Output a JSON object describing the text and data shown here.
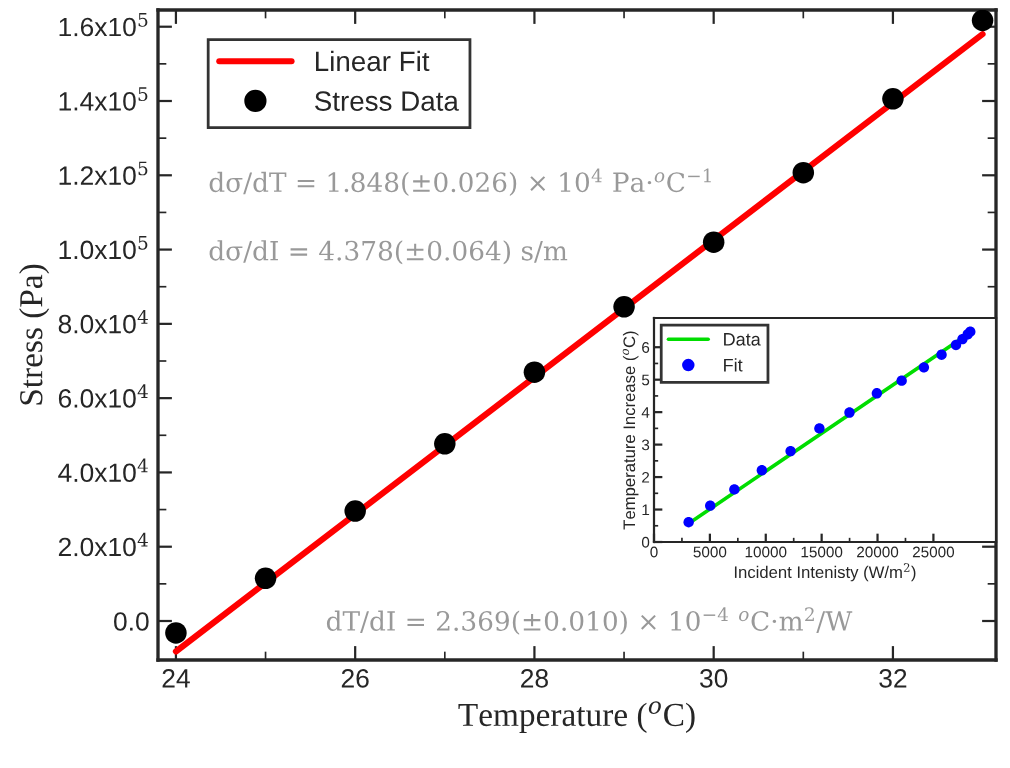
{
  "chart_data": [
    {
      "type": "scatter",
      "xlabel": "Temperature ($^{o}$C)",
      "ylabel": "Stress (Pa)",
      "series": [
        {
          "name": "Linear Fit",
          "type": "line",
          "color": "#ff0000",
          "marker": "none",
          "x": [
            24,
            33
          ],
          "values": [
            -8200,
            158000
          ]
        },
        {
          "name": "Stress Data",
          "color": "#000000",
          "marker": "circle",
          "x": [
            24,
            25,
            26,
            27,
            28,
            29,
            30,
            31,
            32,
            33
          ],
          "values": [
            -3200,
            11500,
            29600,
            47700,
            67000,
            84600,
            102000,
            120700,
            140600,
            161700
          ]
        }
      ],
      "xlim": [
        23.8,
        33.15
      ],
      "xticks": [
        24,
        26,
        28,
        30,
        32
      ],
      "ylim": [
        -10500,
        164500
      ],
      "yticks": [
        {
          "value": 0,
          "label": "0.0"
        },
        {
          "value": 20000,
          "label": "2.0x10$^{4}$"
        },
        {
          "value": 40000,
          "label": "4.0x10$^{4}$"
        },
        {
          "value": 60000,
          "label": "6.0x10$^{4}$"
        },
        {
          "value": 80000,
          "label": "8.0x10$^{4}$"
        },
        {
          "value": 100000,
          "label": "1.0x10$^{5}$"
        },
        {
          "value": 120000,
          "label": "1.2x10$^{5}$"
        },
        {
          "value": 140000,
          "label": "1.4x10$^{5}$"
        },
        {
          "value": 160000,
          "label": "1.6x10$^{5}$"
        }
      ],
      "annotations": [
        "dσ/dT = 1.848(±0.026) × 10$^{4}$ Pa·$^{o}$C$^{−1}$",
        "dσ/dI = 4.378(±0.064) s/m",
        "dT/dI = 2.369(±0.010) × 10$^{−4}$ $^{o}$C·m$^{2}$/W"
      ],
      "grid": false,
      "legend": "top left"
    },
    {
      "type": "scatter",
      "xlabel": "Incident Intenisty (W/m$^{2}$)",
      "ylabel": "Temperature Increase ($^{o}$C)",
      "series": [
        {
          "name": "Data",
          "type": "line",
          "color": "#00dd00",
          "marker": "none",
          "x": [
            3100,
            28300
          ],
          "values": [
            0.57,
            6.45
          ]
        },
        {
          "name": "Fit",
          "color": "#0000ff",
          "marker": "circle",
          "x": [
            3100,
            5030,
            7190,
            9650,
            12220,
            14800,
            17490,
            19940,
            22160,
            24150,
            25730,
            27020,
            27600,
            28070,
            28300
          ],
          "values": [
            0.61,
            1.12,
            1.62,
            2.21,
            2.8,
            3.5,
            3.99,
            4.58,
            4.97,
            5.38,
            5.77,
            6.07,
            6.25,
            6.4,
            6.48
          ]
        }
      ],
      "xlim": [
        0,
        30600
      ],
      "xticks": [
        0,
        5000,
        10000,
        15000,
        20000,
        25000
      ],
      "ylim": [
        0,
        6.9
      ],
      "yticks": [
        0,
        1,
        2,
        3,
        4,
        5,
        6
      ],
      "grid": false,
      "legend": "top left"
    }
  ]
}
